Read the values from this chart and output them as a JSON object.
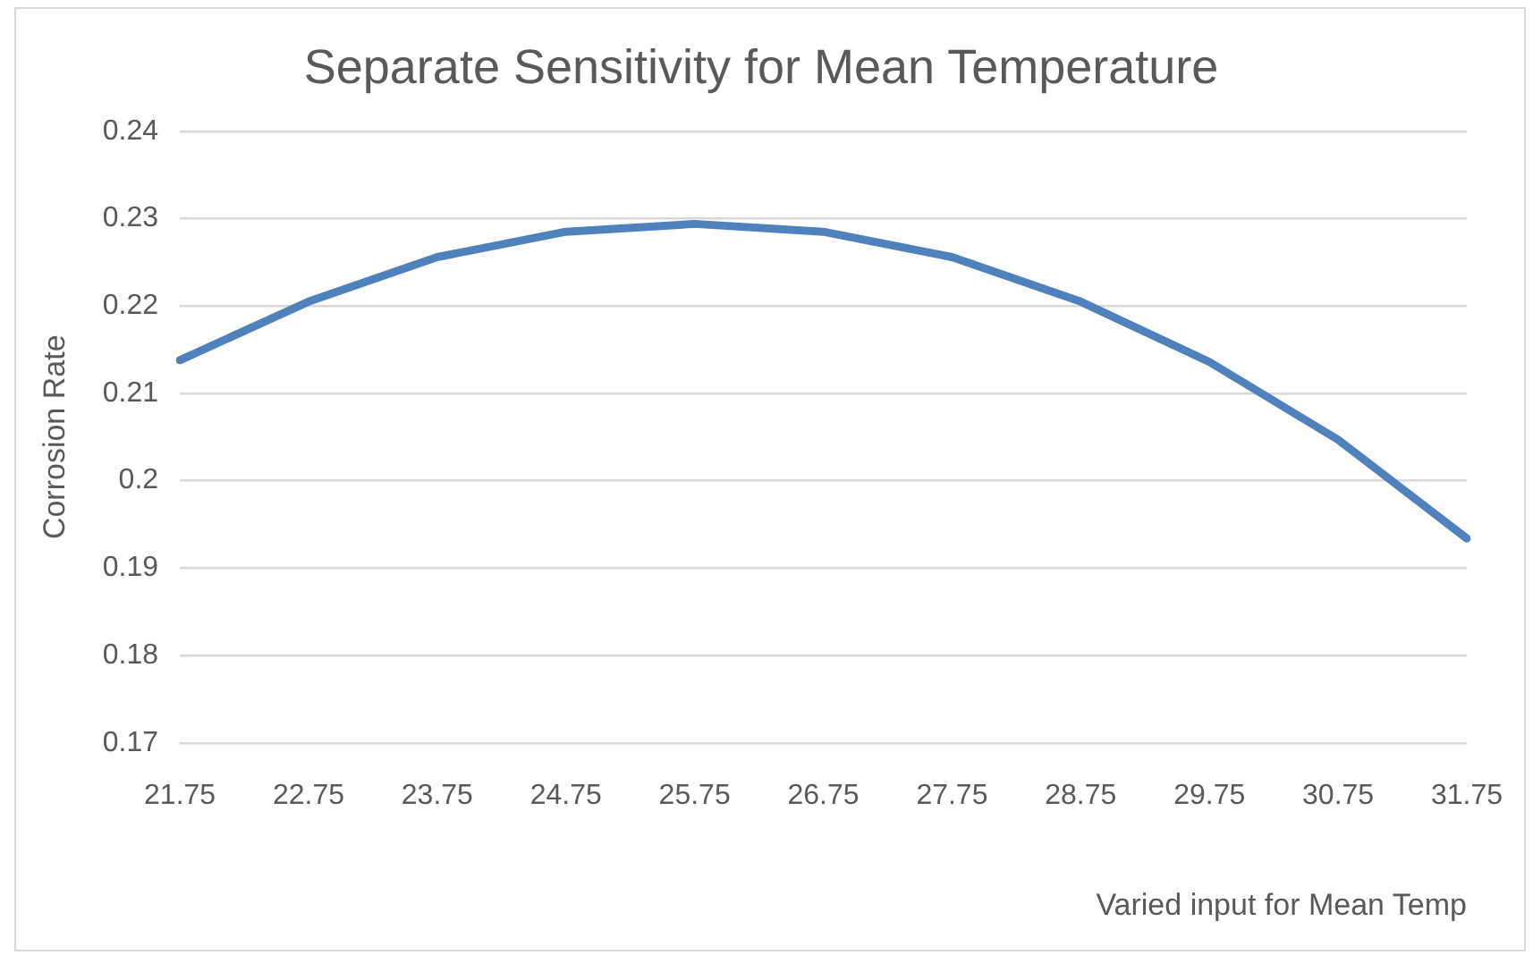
{
  "chart_data": {
    "type": "line",
    "title": "Separate Sensitivity for Mean Temperature",
    "xlabel": "Varied input for Mean Temp",
    "ylabel": "Corrosion Rate",
    "categories": [
      "21.75",
      "22.75",
      "23.75",
      "24.75",
      "25.75",
      "26.75",
      "27.75",
      "28.75",
      "29.75",
      "30.75",
      "31.75"
    ],
    "series": [
      {
        "color": "#4f81bd",
        "values": [
          0.2138,
          0.2205,
          0.2256,
          0.2285,
          0.2294,
          0.2285,
          0.2256,
          0.2205,
          0.2136,
          0.2047,
          0.1934
        ]
      }
    ],
    "ylim": [
      0.17,
      0.24
    ],
    "yticks": [
      0.17,
      0.18,
      0.19,
      0.2,
      0.21,
      0.22,
      0.23,
      0.24
    ],
    "grid": "y",
    "legend": false,
    "marker": "none",
    "line_style": "solid"
  }
}
